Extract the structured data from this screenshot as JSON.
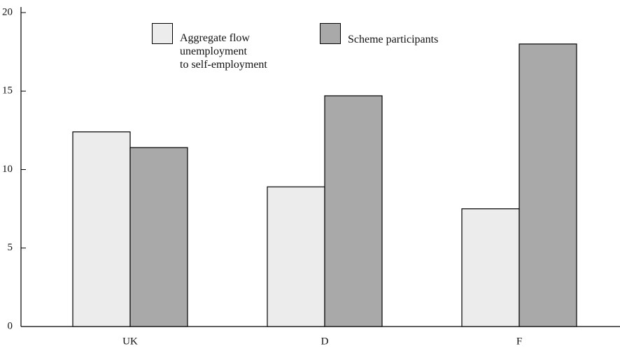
{
  "chart_data": {
    "type": "bar",
    "categories": [
      "UK",
      "D",
      "F"
    ],
    "series": [
      {
        "name": "Aggregate flow\nunemployment\nto self-employment",
        "color": "#ececec",
        "values": [
          12.4,
          8.9,
          7.5
        ]
      },
      {
        "name": "Scheme participants",
        "color": "#a9a9a9",
        "values": [
          11.4,
          14.7,
          18.0
        ]
      }
    ],
    "ylim": [
      0,
      20
    ],
    "yticks": [
      0,
      5,
      10,
      15,
      20
    ]
  }
}
